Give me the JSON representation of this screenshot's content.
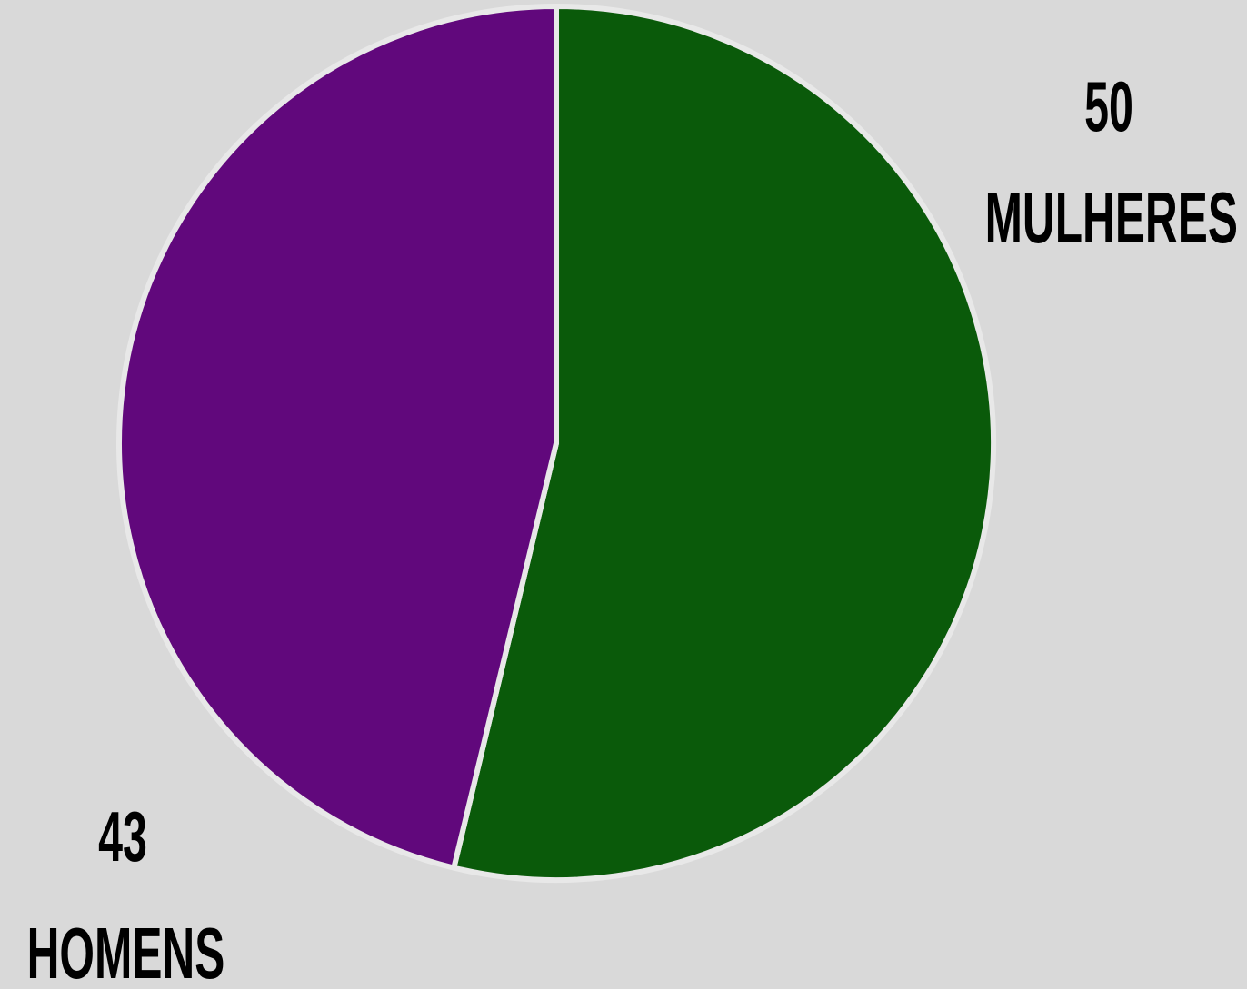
{
  "chart_data": {
    "type": "pie",
    "slices": [
      {
        "label": "MULHERES",
        "value": 50,
        "color": "#0a5a0a"
      },
      {
        "label": "HOMENS",
        "value": 43,
        "color": "#61087c"
      }
    ],
    "start_angle_deg": 0,
    "direction": "clockwise",
    "slice_border_color": "#e8e8e8",
    "background_color": "#d9d9d9"
  }
}
